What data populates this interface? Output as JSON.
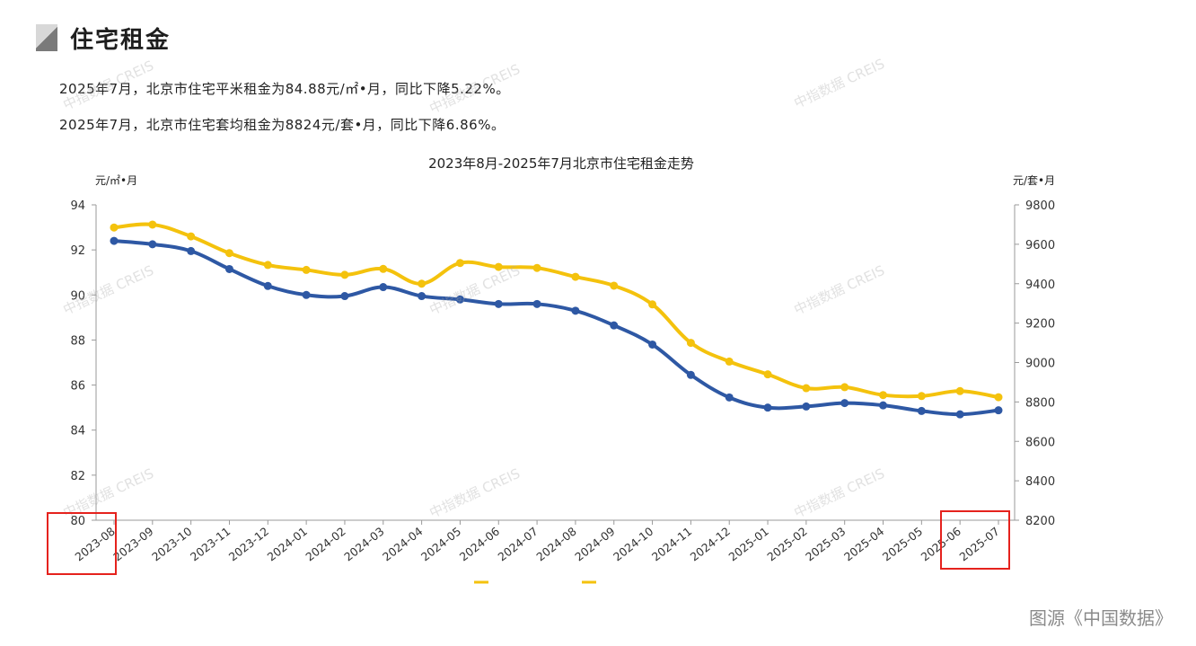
{
  "section": {
    "title": "住宅租金",
    "marker_icon": "section-marker-icon"
  },
  "summary": {
    "line1": "2025年7月，北京市住宅平米租金为84.88元/㎡•月，同比下降5.22%。",
    "line2": "2025年7月，北京市住宅套均租金为8824元/套•月，同比下降6.86%。"
  },
  "watermark_text": "中指数据 CREIS",
  "source_caption": "图源《中国数据》",
  "chart_data": {
    "type": "line",
    "title": "2023年8月-2025年7月北京市住宅租金走势",
    "ylabel": "元/㎡•月",
    "y2label": "元/套•月",
    "ylim": [
      80,
      94
    ],
    "yticks": [
      "94",
      "92",
      "90",
      "88",
      "86",
      "84",
      "82",
      "80"
    ],
    "y2lim": [
      8200,
      9800
    ],
    "y2ticks": [
      "9800",
      "9600",
      "9400",
      "9200",
      "9000",
      "8800",
      "8600",
      "8400",
      "8200"
    ],
    "legend_position": "bottom",
    "grid": false,
    "categories": [
      "2023-08",
      "2023-09",
      "2023-10",
      "2023-11",
      "2023-12",
      "2024-01",
      "2024-02",
      "2024-03",
      "2024-04",
      "2024-05",
      "2024-06",
      "2024-07",
      "2024-08",
      "2024-09",
      "2024-10",
      "2024-11",
      "2024-12",
      "2025-01",
      "2025-02",
      "2025-03",
      "2025-04",
      "2025-05",
      "2025-06",
      "2025-07"
    ],
    "series": [
      {
        "axis": "left",
        "color": "#2e58a4",
        "values": [
          92.4,
          92.25,
          91.95,
          91.15,
          90.4,
          90.0,
          89.95,
          90.35,
          89.95,
          89.8,
          89.6,
          89.6,
          89.3,
          88.65,
          87.8,
          86.45,
          85.45,
          85.0,
          85.05,
          85.2,
          85.1,
          84.85,
          84.7,
          84.88
        ]
      },
      {
        "axis": "right",
        "color": "#f4c20d",
        "values": [
          9685,
          9700,
          9640,
          9555,
          9495,
          9470,
          9445,
          9475,
          9400,
          9505,
          9485,
          9480,
          9435,
          9390,
          9295,
          9100,
          9005,
          8940,
          8870,
          8875,
          8835,
          8830,
          8855,
          8824
        ]
      }
    ]
  },
  "annotations": {
    "highlight_start": "2023-08",
    "highlight_end": "2025-07",
    "highlight_color": "#e5221d"
  }
}
